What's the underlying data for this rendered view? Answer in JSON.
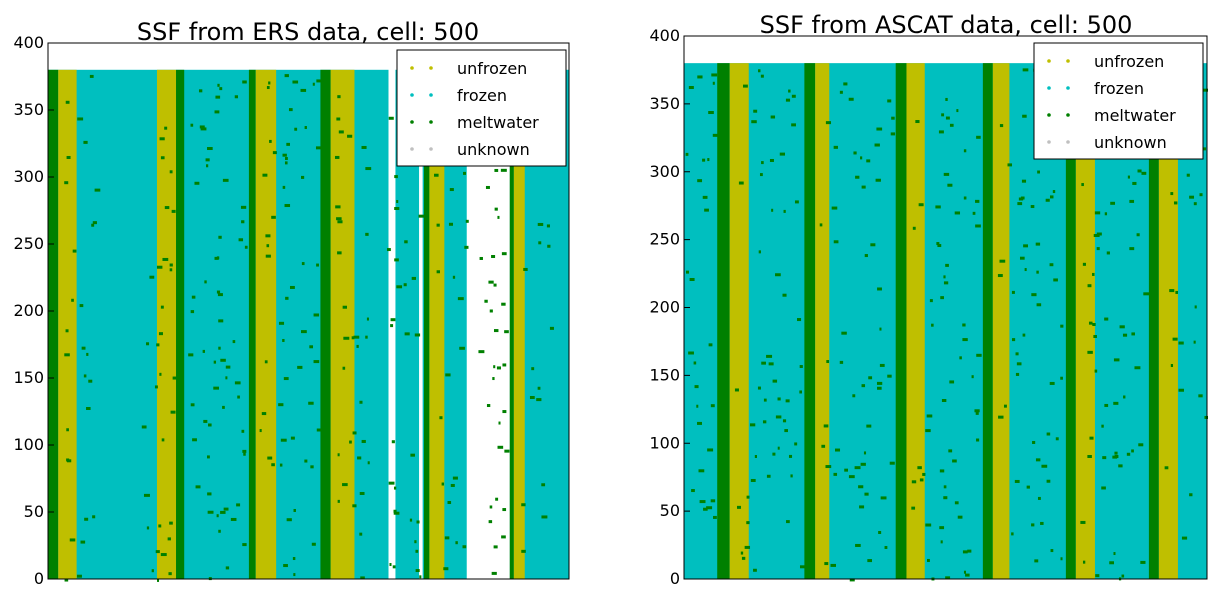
{
  "chart_data": [
    {
      "type": "heatmap",
      "title": "SSF from ERS data, cell: 500",
      "xlabel": "",
      "ylabel": "",
      "ylim": [
        0,
        400
      ],
      "yticks": [
        "0",
        "50",
        "100",
        "150",
        "200",
        "250",
        "300",
        "350",
        "400"
      ],
      "data_top": 380,
      "categories": [
        "unfrozen",
        "frozen",
        "meltwater",
        "unknown"
      ],
      "colors": {
        "unfrozen": "#bfbf00",
        "frozen": "#00bfbf",
        "meltwater": "#008000",
        "unknown": "#c0c0c0",
        "missing": "#ffffff"
      },
      "bands": [
        {
          "state": "frozen",
          "x": [
            0,
            1.0
          ]
        },
        {
          "state": "meltwater",
          "x": [
            0.0,
            0.15
          ]
        },
        {
          "state": "unfrozen",
          "x": [
            0.15,
            0.42
          ]
        },
        {
          "state": "unfrozen",
          "x": [
            1.6,
            1.88
          ]
        },
        {
          "state": "meltwater",
          "x": [
            1.88,
            2.0
          ]
        },
        {
          "state": "meltwater",
          "x": [
            2.95,
            3.05
          ]
        },
        {
          "state": "unfrozen",
          "x": [
            3.05,
            3.35
          ]
        },
        {
          "state": "meltwater",
          "x": [
            4.0,
            4.15
          ]
        },
        {
          "state": "unfrozen",
          "x": [
            4.15,
            4.5
          ]
        },
        {
          "state": "missing",
          "x": [
            5.0,
            5.1
          ]
        },
        {
          "state": "missing",
          "x": [
            5.45,
            5.5
          ]
        },
        {
          "state": "meltwater",
          "x": [
            5.52,
            5.6
          ]
        },
        {
          "state": "unfrozen",
          "x": [
            5.6,
            5.82
          ]
        },
        {
          "state": "missing",
          "x": [
            6.15,
            6.78
          ]
        },
        {
          "state": "meltwater",
          "x": [
            6.78,
            6.84
          ]
        },
        {
          "state": "unfrozen",
          "x": [
            6.84,
            7.0
          ]
        }
      ],
      "xlim": [
        0,
        7.65
      ],
      "legend": {
        "entries": [
          "unfrozen",
          "frozen",
          "meltwater",
          "unknown"
        ],
        "placement": "top-right"
      }
    },
    {
      "type": "heatmap",
      "title": "SSF from ASCAT data, cell: 500",
      "xlabel": "",
      "ylabel": "",
      "ylim": [
        0,
        400
      ],
      "yticks": [
        "0",
        "50",
        "100",
        "150",
        "200",
        "250",
        "300",
        "350",
        "400"
      ],
      "data_top": 380,
      "categories": [
        "unfrozen",
        "frozen",
        "meltwater",
        "unknown"
      ],
      "colors": {
        "unfrozen": "#bfbf00",
        "frozen": "#00bfbf",
        "meltwater": "#008000",
        "unknown": "#c0c0c0",
        "missing": "#ffffff"
      },
      "bands": [
        {
          "state": "meltwater",
          "x": [
            0.4,
            0.55
          ]
        },
        {
          "state": "unfrozen",
          "x": [
            0.55,
            0.78
          ]
        },
        {
          "state": "meltwater",
          "x": [
            1.45,
            1.58
          ]
        },
        {
          "state": "unfrozen",
          "x": [
            1.58,
            1.75
          ]
        },
        {
          "state": "meltwater",
          "x": [
            2.55,
            2.68
          ]
        },
        {
          "state": "unfrozen",
          "x": [
            2.68,
            2.9
          ]
        },
        {
          "state": "meltwater",
          "x": [
            3.6,
            3.72
          ]
        },
        {
          "state": "unfrozen",
          "x": [
            3.72,
            3.92
          ]
        },
        {
          "state": "meltwater",
          "x": [
            4.6,
            4.72
          ]
        },
        {
          "state": "unfrozen",
          "x": [
            4.72,
            4.95
          ]
        },
        {
          "state": "meltwater",
          "x": [
            5.6,
            5.72
          ]
        },
        {
          "state": "unfrozen",
          "x": [
            5.72,
            5.95
          ]
        }
      ],
      "xlim": [
        0,
        6.3
      ],
      "legend": {
        "entries": [
          "unfrozen",
          "frozen",
          "meltwater",
          "unknown"
        ],
        "placement": "top-right"
      }
    }
  ]
}
